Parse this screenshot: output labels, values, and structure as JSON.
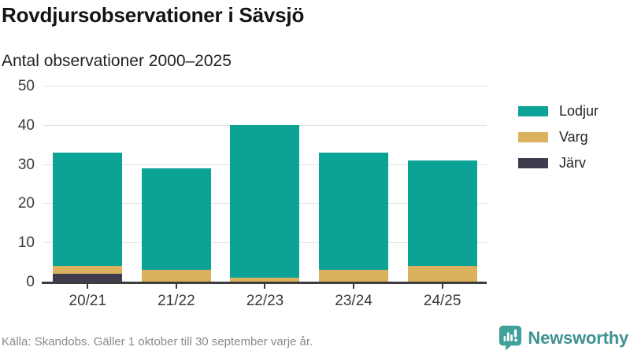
{
  "title": "Rovdjursobservationer i Sävsjö",
  "subtitle": "Antal observationer 2000–2025",
  "source": "Källa: Skandobs. Gäller 1 oktober till 30 september varje år.",
  "brand": {
    "name": "Newsworthy",
    "color": "#3f9391",
    "icon": "newsworthy-bubble-chart-icon"
  },
  "colors": {
    "lodjur": "#0aa396",
    "varg": "#dcb15e",
    "jarv": "#3f3d4d",
    "gridline": "#e2e2e2",
    "axis": "#3d3d3d",
    "tick_text": "#3a3a3a",
    "source_text": "#8a8a8a"
  },
  "chart_data": {
    "type": "bar",
    "stacked": true,
    "title": "Rovdjursobservationer i Sävsjö",
    "subtitle": "Antal observationer 2000–2025",
    "categories": [
      "20/21",
      "21/22",
      "22/23",
      "23/24",
      "24/25"
    ],
    "series": [
      {
        "name": "Lodjur",
        "color": "#0aa396",
        "values": [
          29,
          26,
          39,
          30,
          27
        ]
      },
      {
        "name": "Varg",
        "color": "#dcb15e",
        "values": [
          2,
          3,
          1,
          3,
          4
        ]
      },
      {
        "name": "Järv",
        "color": "#3f3d4d",
        "values": [
          2,
          0,
          0,
          0,
          0
        ]
      }
    ],
    "totals": [
      33,
      29,
      40,
      33,
      31
    ],
    "xlabel": "",
    "ylabel": "",
    "ylim": [
      0,
      50
    ],
    "yticks": [
      0,
      10,
      20,
      30,
      40,
      50
    ],
    "grid": true,
    "legend_position": "right",
    "legend_order": [
      "Lodjur",
      "Varg",
      "Järv"
    ]
  }
}
